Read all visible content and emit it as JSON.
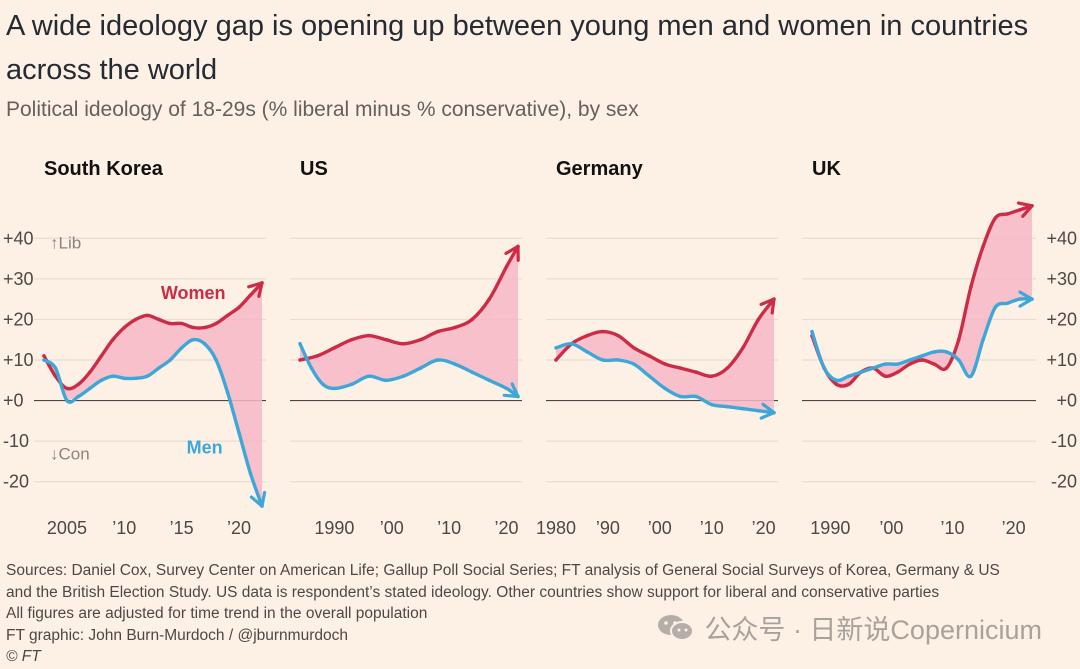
{
  "title": "A wide ideology gap is opening up between young men and women in countries across the world",
  "subtitle": "Political ideology of 18-29s (% liberal minus % conservative), by sex",
  "colors": {
    "women": "#cc2c46",
    "men": "#3ea7d8",
    "gap_fill": "#f7b7c6",
    "grid": "#e4d8cb",
    "zero": "#4d4845",
    "axis_text": "#4d4845"
  },
  "annotations": {
    "lib": "↑Lib",
    "con": "↓Con"
  },
  "y_ticks": [
    "-20",
    "-10",
    "+0",
    "+10",
    "+20",
    "+30",
    "+40"
  ],
  "footer": {
    "sources_line1": "Sources: Daniel Cox, Survey Center on American Life; Gallup Poll Social Series; FT analysis of General Social Surveys of Korea, Germany & US",
    "sources_line2": "and the British Election Study. US data is respondent’s stated ideology. Other countries show support for liberal and conservative parties",
    "note": "All figures are adjusted for time trend in the overall population",
    "credit": "FT graphic: John Burn-Murdoch / @jburnmurdoch",
    "copyright": "© FT"
  },
  "watermark": {
    "text": "公众号 · 日新说Copernicium",
    "icon": "wechat-icon"
  },
  "chart_data": [
    {
      "type": "line",
      "title": "South Korea",
      "xlim": [
        2003,
        2022
      ],
      "ylim": [
        -25,
        45
      ],
      "x_ticks": [
        2005,
        2010,
        2015,
        2020
      ],
      "x_tick_labels": [
        "2005",
        "’10",
        "’15",
        "’20"
      ],
      "series": [
        {
          "name": "Women",
          "x": [
            2003,
            2004,
            2005,
            2006,
            2007,
            2008,
            2009,
            2010,
            2011,
            2012,
            2013,
            2014,
            2015,
            2016,
            2017,
            2018,
            2019,
            2020,
            2021,
            2022
          ],
          "values": [
            11,
            6,
            3,
            4,
            7,
            11,
            15,
            18,
            20,
            21,
            20,
            19,
            19,
            18,
            18,
            19,
            21,
            23,
            26,
            29
          ]
        },
        {
          "name": "Men",
          "x": [
            2003,
            2004,
            2005,
            2006,
            2007,
            2008,
            2009,
            2010,
            2011,
            2012,
            2013,
            2014,
            2015,
            2016,
            2017,
            2018,
            2019,
            2020,
            2021,
            2022
          ],
          "values": [
            10,
            8,
            0,
            1,
            3,
            5,
            6,
            5.5,
            5.5,
            6,
            8,
            10,
            13,
            15,
            14,
            10,
            2,
            -8,
            -18,
            -26
          ]
        }
      ]
    },
    {
      "type": "line",
      "title": "US",
      "xlim": [
        1984,
        2022
      ],
      "ylim": [
        -25,
        45
      ],
      "x_ticks": [
        1990,
        2000,
        2010,
        2020
      ],
      "x_tick_labels": [
        "1990",
        "’00",
        "’10",
        "’20"
      ],
      "series": [
        {
          "name": "Women",
          "x": [
            1984,
            1987,
            1990,
            1993,
            1996,
            1999,
            2002,
            2005,
            2008,
            2011,
            2014,
            2017,
            2020,
            2022
          ],
          "values": [
            10,
            11,
            13,
            15,
            16,
            15,
            14,
            15,
            17,
            18,
            20,
            25,
            33,
            38
          ]
        },
        {
          "name": "Men",
          "x": [
            1984,
            1986,
            1988,
            1990,
            1993,
            1996,
            1999,
            2002,
            2005,
            2008,
            2011,
            2014,
            2017,
            2020,
            2022
          ],
          "values": [
            14,
            8,
            4,
            3,
            4,
            6,
            5,
            6,
            8,
            10,
            9,
            7,
            5,
            3,
            1
          ]
        }
      ]
    },
    {
      "type": "line",
      "title": "Germany",
      "xlim": [
        1980,
        2022
      ],
      "ylim": [
        -25,
        45
      ],
      "x_ticks": [
        1980,
        1990,
        2000,
        2010,
        2020
      ],
      "x_tick_labels": [
        "1980",
        "’90",
        "’00",
        "’10",
        "’20"
      ],
      "series": [
        {
          "name": "Women",
          "x": [
            1980,
            1983,
            1986,
            1989,
            1992,
            1995,
            1998,
            2001,
            2004,
            2007,
            2010,
            2013,
            2016,
            2019,
            2022
          ],
          "values": [
            10,
            14,
            16,
            17,
            16,
            13,
            11,
            9,
            8,
            7,
            6,
            8,
            13,
            20,
            25
          ]
        },
        {
          "name": "Men",
          "x": [
            1980,
            1983,
            1986,
            1989,
            1992,
            1995,
            1998,
            2001,
            2004,
            2007,
            2010,
            2013,
            2016,
            2019,
            2022
          ],
          "values": [
            13,
            14,
            12,
            10,
            10,
            9,
            6,
            3,
            1,
            1,
            -1,
            -1.5,
            -2,
            -2.5,
            -3
          ]
        }
      ]
    },
    {
      "type": "line",
      "title": "UK",
      "xlim": [
        1987,
        2023
      ],
      "ylim": [
        -25,
        45
      ],
      "x_ticks": [
        1990,
        2000,
        2010,
        2020
      ],
      "x_tick_labels": [
        "1990",
        "’00",
        "’10",
        "’20"
      ],
      "series": [
        {
          "name": "Women",
          "x": [
            1987,
            1989,
            1991,
            1993,
            1995,
            1997,
            1999,
            2001,
            2003,
            2005,
            2007,
            2009,
            2011,
            2013,
            2015,
            2017,
            2019,
            2021,
            2023
          ],
          "values": [
            16,
            8,
            4,
            4,
            7,
            8,
            6,
            7,
            9,
            10,
            9,
            8,
            15,
            28,
            38,
            45,
            46,
            47,
            48
          ]
        },
        {
          "name": "Men",
          "x": [
            1987,
            1989,
            1991,
            1993,
            1995,
            1997,
            1999,
            2001,
            2003,
            2005,
            2007,
            2009,
            2011,
            2013,
            2015,
            2017,
            2019,
            2021,
            2023
          ],
          "values": [
            17,
            8,
            5,
            6,
            7,
            8,
            9,
            9,
            10,
            11,
            12,
            12,
            10,
            6,
            15,
            23,
            24,
            25,
            25
          ]
        }
      ]
    }
  ]
}
